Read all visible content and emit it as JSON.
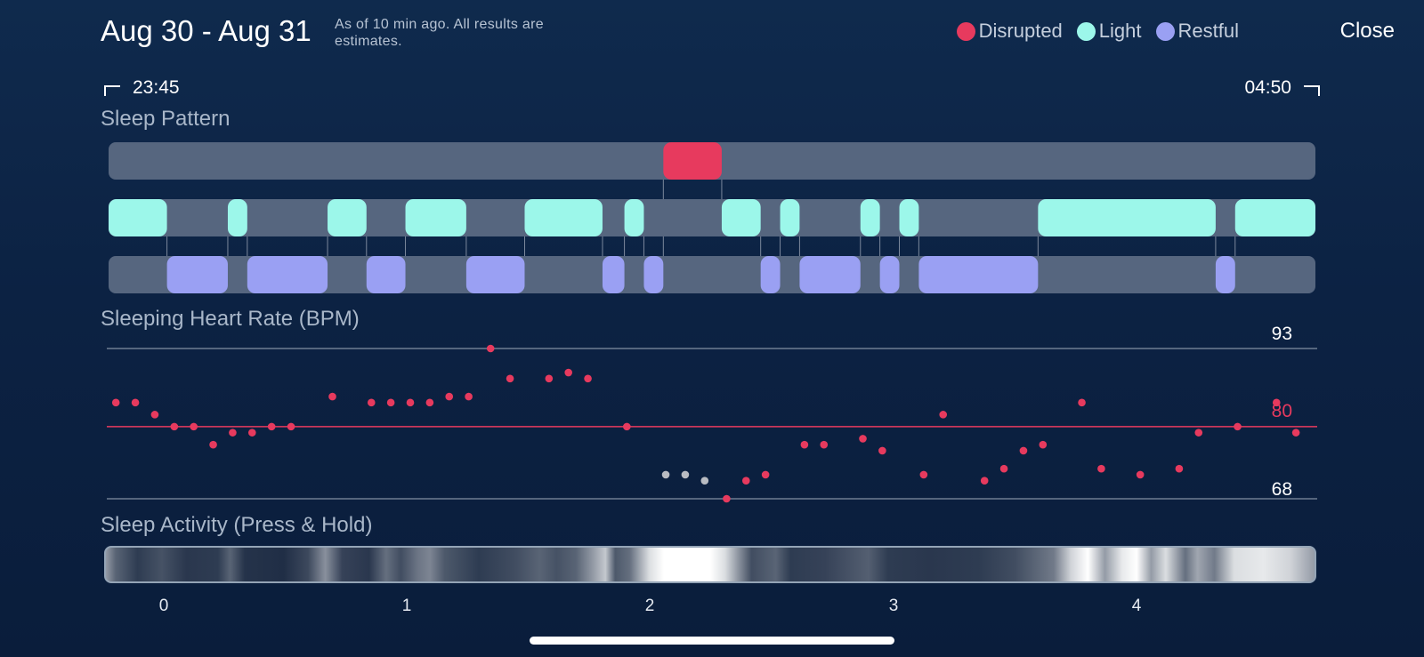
{
  "header": {
    "title": "Aug 30 - Aug 31",
    "subtitle": "As of 10 min ago. All results are estimates.",
    "close_label": "Close"
  },
  "legend": [
    {
      "label": "Disrupted",
      "color": "#e73a5e"
    },
    {
      "label": "Light",
      "color": "#9cf7ea"
    },
    {
      "label": "Restful",
      "color": "#9aa0f3"
    }
  ],
  "time_range": {
    "start": "23:45",
    "end": "04:50"
  },
  "sections": {
    "pattern_title": "Sleep Pattern",
    "heart_rate_title": "Sleeping Heart Rate (BPM)",
    "activity_title": "Sleep Activity (Press & Hold)"
  },
  "colors": {
    "disrupted": "#e73a5e",
    "light": "#9cf7ea",
    "restful": "#9aa0f3",
    "track": "#56667f",
    "hr_dot": "#e73a5e",
    "hr_gap_dot": "#b9bcc2"
  },
  "chart_data": [
    {
      "type": "timeline",
      "title": "Sleep Pattern",
      "x_unit": "hours since start",
      "x_range": [
        -0.23,
        4.73
      ],
      "rows": [
        {
          "name": "Disrupted",
          "segments": [
            [
              2.05,
              2.29
            ]
          ]
        },
        {
          "name": "Light",
          "segments": [
            [
              -0.23,
              0.01
            ],
            [
              0.26,
              0.34
            ],
            [
              0.67,
              0.83
            ],
            [
              0.99,
              1.24
            ],
            [
              1.48,
              1.8
            ],
            [
              1.89,
              1.97
            ],
            [
              2.29,
              2.45
            ],
            [
              2.53,
              2.61
            ],
            [
              2.86,
              2.94
            ],
            [
              3.02,
              3.1
            ],
            [
              3.59,
              4.32
            ],
            [
              4.4,
              4.73
            ]
          ]
        },
        {
          "name": "Restful",
          "segments": [
            [
              0.01,
              0.26
            ],
            [
              0.34,
              0.67
            ],
            [
              0.83,
              0.99
            ],
            [
              1.24,
              1.48
            ],
            [
              1.8,
              1.89
            ],
            [
              1.97,
              2.05
            ],
            [
              2.45,
              2.53
            ],
            [
              2.61,
              2.86
            ],
            [
              2.94,
              3.02
            ],
            [
              3.1,
              3.59
            ],
            [
              4.32,
              4.4
            ]
          ]
        }
      ]
    },
    {
      "type": "scatter",
      "title": "Sleeping Heart Rate (BPM)",
      "x_unit": "hours since start",
      "x_range": [
        -0.23,
        4.73
      ],
      "ylim": [
        68,
        93
      ],
      "reference_lines": [
        {
          "value": 93,
          "label": "93"
        },
        {
          "value": 80,
          "label": "80",
          "color": "#e73a5e"
        },
        {
          "value": 68,
          "label": "68"
        }
      ],
      "points": [
        {
          "x": -0.2,
          "y": 84
        },
        {
          "x": -0.12,
          "y": 84
        },
        {
          "x": -0.04,
          "y": 82
        },
        {
          "x": 0.04,
          "y": 80
        },
        {
          "x": 0.12,
          "y": 80
        },
        {
          "x": 0.2,
          "y": 77
        },
        {
          "x": 0.28,
          "y": 79
        },
        {
          "x": 0.36,
          "y": 79
        },
        {
          "x": 0.44,
          "y": 80
        },
        {
          "x": 0.52,
          "y": 80
        },
        {
          "x": 0.69,
          "y": 85
        },
        {
          "x": 0.85,
          "y": 84
        },
        {
          "x": 0.93,
          "y": 84
        },
        {
          "x": 1.01,
          "y": 84
        },
        {
          "x": 1.09,
          "y": 84
        },
        {
          "x": 1.17,
          "y": 85
        },
        {
          "x": 1.25,
          "y": 85
        },
        {
          "x": 1.34,
          "y": 93
        },
        {
          "x": 1.42,
          "y": 88
        },
        {
          "x": 1.58,
          "y": 88
        },
        {
          "x": 1.66,
          "y": 89
        },
        {
          "x": 1.74,
          "y": 88
        },
        {
          "x": 1.9,
          "y": 80
        },
        {
          "x": 2.06,
          "y": 72,
          "gap": true
        },
        {
          "x": 2.14,
          "y": 72,
          "gap": true
        },
        {
          "x": 2.22,
          "y": 71,
          "gap": true
        },
        {
          "x": 2.31,
          "y": 68
        },
        {
          "x": 2.39,
          "y": 71
        },
        {
          "x": 2.47,
          "y": 72
        },
        {
          "x": 2.63,
          "y": 77
        },
        {
          "x": 2.71,
          "y": 77
        },
        {
          "x": 2.87,
          "y": 78
        },
        {
          "x": 2.95,
          "y": 76
        },
        {
          "x": 3.12,
          "y": 72
        },
        {
          "x": 3.2,
          "y": 82
        },
        {
          "x": 3.37,
          "y": 71
        },
        {
          "x": 3.45,
          "y": 73
        },
        {
          "x": 3.53,
          "y": 76
        },
        {
          "x": 3.61,
          "y": 77
        },
        {
          "x": 3.77,
          "y": 84
        },
        {
          "x": 3.85,
          "y": 73
        },
        {
          "x": 4.01,
          "y": 72
        },
        {
          "x": 4.17,
          "y": 73
        },
        {
          "x": 4.25,
          "y": 79
        },
        {
          "x": 4.41,
          "y": 80
        },
        {
          "x": 4.57,
          "y": 84
        },
        {
          "x": 4.65,
          "y": 79
        }
      ]
    },
    {
      "type": "heatmap",
      "title": "Sleep Activity (Press & Hold)",
      "x_unit": "hours since start",
      "x_range": [
        -0.23,
        4.73
      ],
      "x_ticks": [
        "0",
        "1",
        "2",
        "3",
        "4"
      ],
      "intensity": [
        {
          "x": -0.23,
          "v": 0.55
        },
        {
          "x": -0.19,
          "v": 0.3
        },
        {
          "x": -0.1,
          "v": 0.12
        },
        {
          "x": 0.0,
          "v": 0.22
        },
        {
          "x": 0.1,
          "v": 0.1
        },
        {
          "x": 0.23,
          "v": 0.12
        },
        {
          "x": 0.28,
          "v": 0.3
        },
        {
          "x": 0.34,
          "v": 0.08
        },
        {
          "x": 0.5,
          "v": 0.06
        },
        {
          "x": 0.6,
          "v": 0.18
        },
        {
          "x": 0.67,
          "v": 0.5
        },
        {
          "x": 0.74,
          "v": 0.15
        },
        {
          "x": 0.85,
          "v": 0.1
        },
        {
          "x": 0.92,
          "v": 0.35
        },
        {
          "x": 0.98,
          "v": 0.2
        },
        {
          "x": 1.05,
          "v": 0.38
        },
        {
          "x": 1.1,
          "v": 0.45
        },
        {
          "x": 1.16,
          "v": 0.25
        },
        {
          "x": 1.3,
          "v": 0.12
        },
        {
          "x": 1.45,
          "v": 0.2
        },
        {
          "x": 1.55,
          "v": 0.3
        },
        {
          "x": 1.62,
          "v": 0.22
        },
        {
          "x": 1.7,
          "v": 0.3
        },
        {
          "x": 1.77,
          "v": 0.55
        },
        {
          "x": 1.82,
          "v": 0.75
        },
        {
          "x": 1.86,
          "v": 0.25
        },
        {
          "x": 1.92,
          "v": 0.35
        },
        {
          "x": 2.0,
          "v": 0.85
        },
        {
          "x": 2.06,
          "v": 1.0
        },
        {
          "x": 2.25,
          "v": 1.0
        },
        {
          "x": 2.31,
          "v": 0.85
        },
        {
          "x": 2.36,
          "v": 0.55
        },
        {
          "x": 2.42,
          "v": 0.2
        },
        {
          "x": 2.52,
          "v": 0.3
        },
        {
          "x": 2.58,
          "v": 0.12
        },
        {
          "x": 2.72,
          "v": 0.15
        },
        {
          "x": 2.9,
          "v": 0.28
        },
        {
          "x": 2.98,
          "v": 0.12
        },
        {
          "x": 3.15,
          "v": 0.1
        },
        {
          "x": 3.35,
          "v": 0.12
        },
        {
          "x": 3.5,
          "v": 0.2
        },
        {
          "x": 3.58,
          "v": 0.3
        },
        {
          "x": 3.66,
          "v": 0.4
        },
        {
          "x": 3.73,
          "v": 0.8
        },
        {
          "x": 3.8,
          "v": 1.0
        },
        {
          "x": 3.87,
          "v": 0.55
        },
        {
          "x": 3.94,
          "v": 0.9
        },
        {
          "x": 4.0,
          "v": 1.0
        },
        {
          "x": 4.06,
          "v": 0.55
        },
        {
          "x": 4.12,
          "v": 0.85
        },
        {
          "x": 4.2,
          "v": 0.35
        },
        {
          "x": 4.25,
          "v": 0.6
        },
        {
          "x": 4.32,
          "v": 0.4
        },
        {
          "x": 4.4,
          "v": 0.85
        },
        {
          "x": 4.52,
          "v": 0.9
        },
        {
          "x": 4.63,
          "v": 0.8
        },
        {
          "x": 4.73,
          "v": 0.55
        }
      ]
    }
  ]
}
